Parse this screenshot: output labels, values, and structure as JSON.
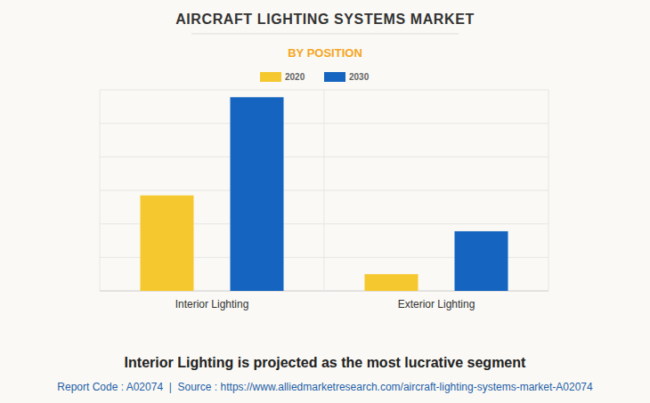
{
  "chart_data": {
    "type": "bar",
    "title": "AIRCRAFT LIGHTING SYSTEMS MARKET",
    "subtitle": "BY POSITION",
    "categories": [
      "Interior Lighting",
      "Exterior Lighting"
    ],
    "series": [
      {
        "name": "2020",
        "color": "#f6c82f",
        "values": [
          2.85,
          0.5
        ]
      },
      {
        "name": "2030",
        "color": "#1565c0",
        "values": [
          5.78,
          1.78
        ]
      }
    ],
    "ylim": [
      0,
      6
    ],
    "yticks": [
      0,
      1,
      2,
      3,
      4,
      5,
      6
    ],
    "grid": true,
    "legend": "top",
    "tick_labels": "x",
    "annotations": [
      "Interior Lighting is projected as the most lucrative segment",
      "Report Code : A02074  |  Source : https://www.alliedmarketresearch.com/aircraft-lighting-systems-market-A02074"
    ]
  }
}
